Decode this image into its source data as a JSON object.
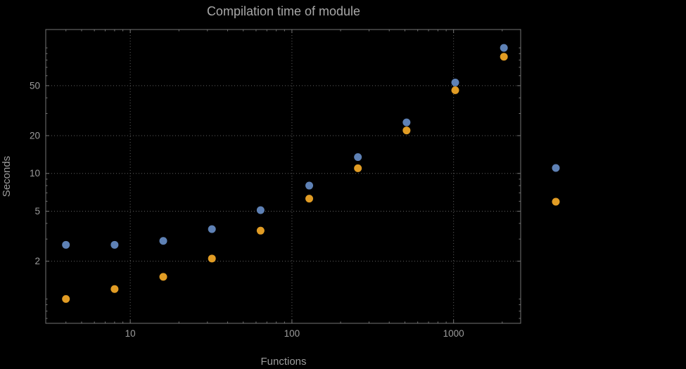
{
  "chart_data": {
    "type": "scatter",
    "title": "Compilation time of module",
    "xlabel": "Functions",
    "ylabel": "Seconds",
    "x_scale": "log",
    "y_scale": "log",
    "x": [
      4,
      8,
      16,
      32,
      64,
      128,
      256,
      512,
      1024,
      2048
    ],
    "series": [
      {
        "name": "series-1-blue",
        "color": "#5e81b5",
        "values": [
          2.7,
          2.7,
          2.9,
          3.6,
          5.1,
          8.0,
          13.5,
          25.5,
          53,
          100
        ]
      },
      {
        "name": "series-2-orange",
        "color": "#e19c24",
        "values": [
          1.0,
          1.2,
          1.5,
          2.1,
          3.5,
          6.3,
          11.0,
          22,
          46,
          85
        ]
      }
    ],
    "x_ticks": [
      10,
      100,
      1000
    ],
    "y_ticks": [
      2,
      5,
      10,
      20,
      50
    ],
    "x_gridlines": [
      10,
      100,
      1000
    ],
    "y_gridlines": [
      2,
      5,
      10,
      20,
      50
    ],
    "xlim": [
      3,
      2600
    ],
    "ylim": [
      0.64,
      140
    ],
    "grid": true,
    "legend_position": "right-outside",
    "legend": [
      {
        "label": "",
        "color": "#5e81b5"
      },
      {
        "label": "",
        "color": "#e19c24"
      }
    ],
    "colors": {
      "background": "#000000",
      "text": "#9c9c9c",
      "title": "#a8a8a8",
      "grid": "#606060",
      "frame": "#757575"
    }
  }
}
